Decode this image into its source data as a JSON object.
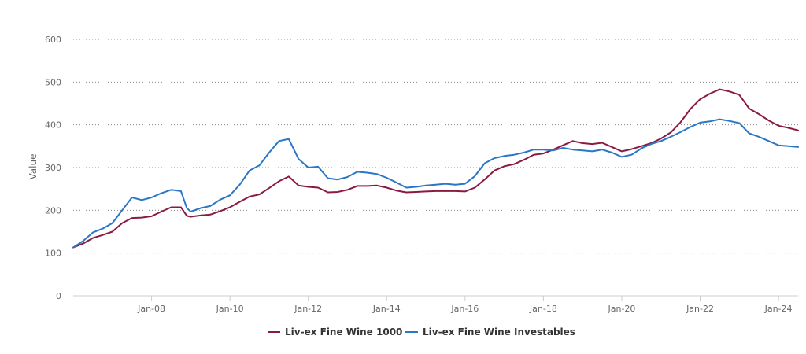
{
  "chart_data": {
    "type": "line",
    "title": "",
    "xlabel": "",
    "ylabel": "Value",
    "ylim": [
      0,
      600
    ],
    "yticks": [
      "0",
      "100",
      "200",
      "300",
      "400",
      "500",
      "600"
    ],
    "xlim": [
      2006.0,
      2024.5
    ],
    "xticks": [
      {
        "value": 2008,
        "label": "Jan-08"
      },
      {
        "value": 2010,
        "label": "Jan-10"
      },
      {
        "value": 2012,
        "label": "Jan-12"
      },
      {
        "value": 2014,
        "label": "Jan-14"
      },
      {
        "value": 2016,
        "label": "Jan-16"
      },
      {
        "value": 2018,
        "label": "Jan-18"
      },
      {
        "value": 2020,
        "label": "Jan-20"
      },
      {
        "value": 2022,
        "label": "Jan-22"
      },
      {
        "value": 2024,
        "label": "Jan-24"
      }
    ],
    "grid": "horizontal dotted",
    "legend_position": "bottom",
    "series": [
      {
        "name": "Liv-ex Fine Wine 1000",
        "color": "#8b1a42",
        "x": [
          2006.0,
          2006.25,
          2006.5,
          2006.75,
          2007.0,
          2007.25,
          2007.5,
          2007.75,
          2008.0,
          2008.25,
          2008.5,
          2008.75,
          2008.9,
          2009.0,
          2009.25,
          2009.5,
          2009.75,
          2010.0,
          2010.25,
          2010.5,
          2010.75,
          2011.0,
          2011.25,
          2011.5,
          2011.75,
          2012.0,
          2012.25,
          2012.5,
          2012.75,
          2013.0,
          2013.25,
          2013.5,
          2013.75,
          2014.0,
          2014.25,
          2014.5,
          2014.75,
          2015.0,
          2015.25,
          2015.5,
          2015.75,
          2016.0,
          2016.25,
          2016.5,
          2016.75,
          2017.0,
          2017.25,
          2017.5,
          2017.75,
          2018.0,
          2018.25,
          2018.5,
          2018.75,
          2019.0,
          2019.25,
          2019.5,
          2019.75,
          2020.0,
          2020.25,
          2020.5,
          2020.75,
          2021.0,
          2021.25,
          2021.5,
          2021.75,
          2022.0,
          2022.25,
          2022.5,
          2022.75,
          2023.0,
          2023.25,
          2023.5,
          2023.75,
          2024.0,
          2024.25,
          2024.5
        ],
        "values": [
          113,
          122,
          135,
          142,
          150,
          170,
          182,
          183,
          186,
          197,
          207,
          207,
          187,
          185,
          188,
          190,
          198,
          207,
          220,
          232,
          237,
          252,
          268,
          279,
          258,
          255,
          253,
          242,
          243,
          248,
          257,
          257,
          258,
          253,
          246,
          242,
          243,
          244,
          245,
          245,
          245,
          244,
          253,
          272,
          293,
          303,
          308,
          318,
          330,
          333,
          342,
          352,
          362,
          357,
          355,
          358,
          348,
          338,
          343,
          350,
          357,
          368,
          382,
          406,
          437,
          460,
          473,
          483,
          478,
          470,
          438,
          425,
          410,
          398,
          393,
          387
        ]
      },
      {
        "name": "Liv-ex Fine Wine Investables",
        "color": "#2a77c6",
        "x": [
          2006.0,
          2006.25,
          2006.5,
          2006.75,
          2007.0,
          2007.25,
          2007.5,
          2007.75,
          2008.0,
          2008.25,
          2008.5,
          2008.75,
          2008.9,
          2009.0,
          2009.25,
          2009.5,
          2009.75,
          2010.0,
          2010.25,
          2010.5,
          2010.75,
          2011.0,
          2011.25,
          2011.5,
          2011.75,
          2012.0,
          2012.25,
          2012.5,
          2012.75,
          2013.0,
          2013.25,
          2013.5,
          2013.75,
          2014.0,
          2014.25,
          2014.5,
          2014.75,
          2015.0,
          2015.25,
          2015.5,
          2015.75,
          2016.0,
          2016.25,
          2016.5,
          2016.75,
          2017.0,
          2017.25,
          2017.5,
          2017.75,
          2018.0,
          2018.25,
          2018.5,
          2018.75,
          2019.0,
          2019.25,
          2019.5,
          2019.75,
          2020.0,
          2020.25,
          2020.5,
          2020.75,
          2021.0,
          2021.25,
          2021.5,
          2021.75,
          2022.0,
          2022.25,
          2022.5,
          2022.75,
          2023.0,
          2023.25,
          2023.5,
          2023.75,
          2024.0,
          2024.25,
          2024.5
        ],
        "values": [
          113,
          128,
          148,
          157,
          170,
          200,
          230,
          224,
          230,
          240,
          248,
          245,
          205,
          197,
          205,
          210,
          225,
          235,
          260,
          293,
          305,
          335,
          362,
          367,
          320,
          300,
          302,
          275,
          272,
          278,
          290,
          288,
          285,
          276,
          265,
          253,
          255,
          258,
          260,
          262,
          260,
          262,
          280,
          310,
          322,
          327,
          330,
          335,
          342,
          342,
          340,
          346,
          342,
          340,
          338,
          342,
          335,
          325,
          330,
          345,
          355,
          362,
          372,
          383,
          395,
          405,
          408,
          413,
          409,
          404,
          380,
          372,
          362,
          352,
          350,
          348
        ]
      }
    ]
  }
}
